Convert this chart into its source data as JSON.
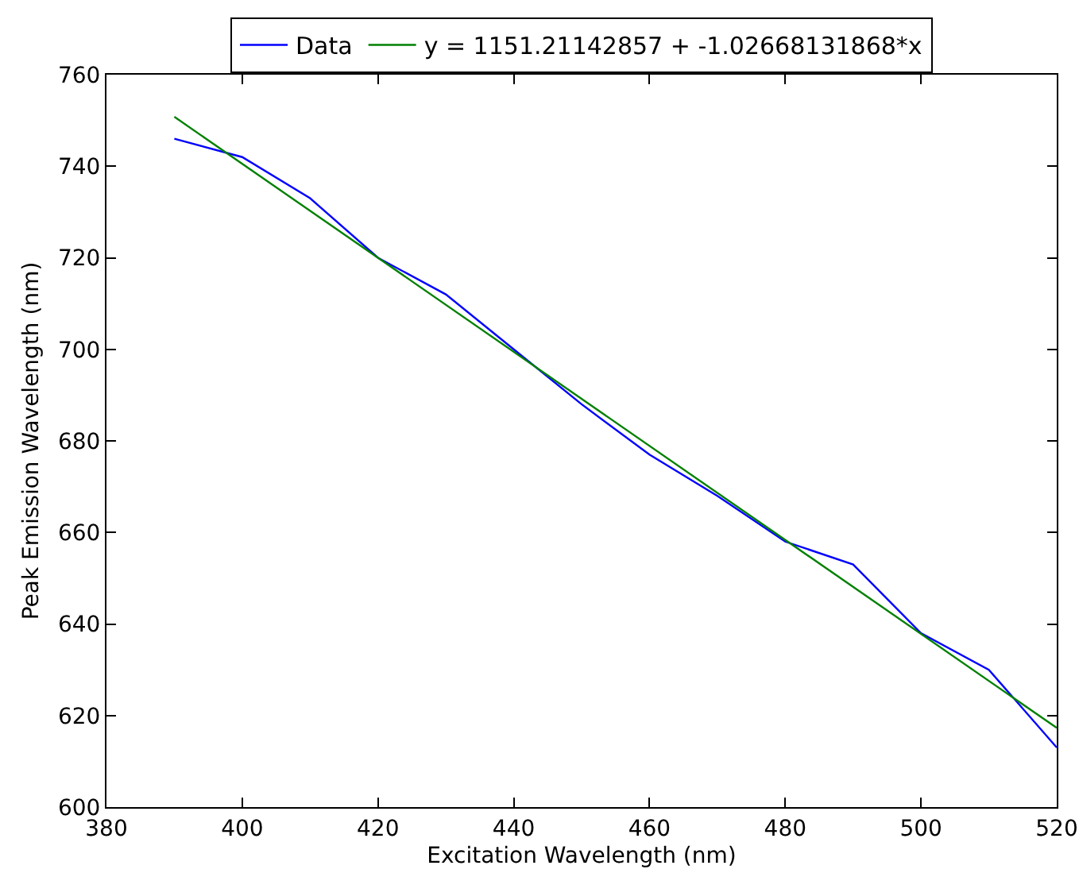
{
  "chart_data": {
    "type": "line",
    "xlabel": "Excitation Wavelength (nm)",
    "ylabel": "Peak Emission Wavelength (nm)",
    "x": [
      390,
      400,
      410,
      420,
      430,
      440,
      450,
      460,
      470,
      480,
      490,
      500,
      510,
      520
    ],
    "series": [
      {
        "name": "Data",
        "color": "#0000ff",
        "values": [
          746,
          742,
          733,
          720,
          712,
          700,
          688,
          677,
          668,
          658,
          653,
          638,
          630,
          613
        ]
      },
      {
        "name": "y = 1151.21142857 + -1.02668131868*x",
        "color": "#008000",
        "type": "line",
        "x": [
          390,
          520
        ],
        "values": [
          750.8,
          617.3
        ]
      }
    ],
    "xlim": [
      380,
      520
    ],
    "xticks": [
      380,
      400,
      420,
      440,
      460,
      480,
      500,
      520
    ],
    "ylim": [
      600,
      760
    ],
    "yticks": [
      600,
      620,
      640,
      660,
      680,
      700,
      720,
      740,
      760
    ],
    "grid": false,
    "legend": "top",
    "marker": "none",
    "line_style": "solid"
  }
}
